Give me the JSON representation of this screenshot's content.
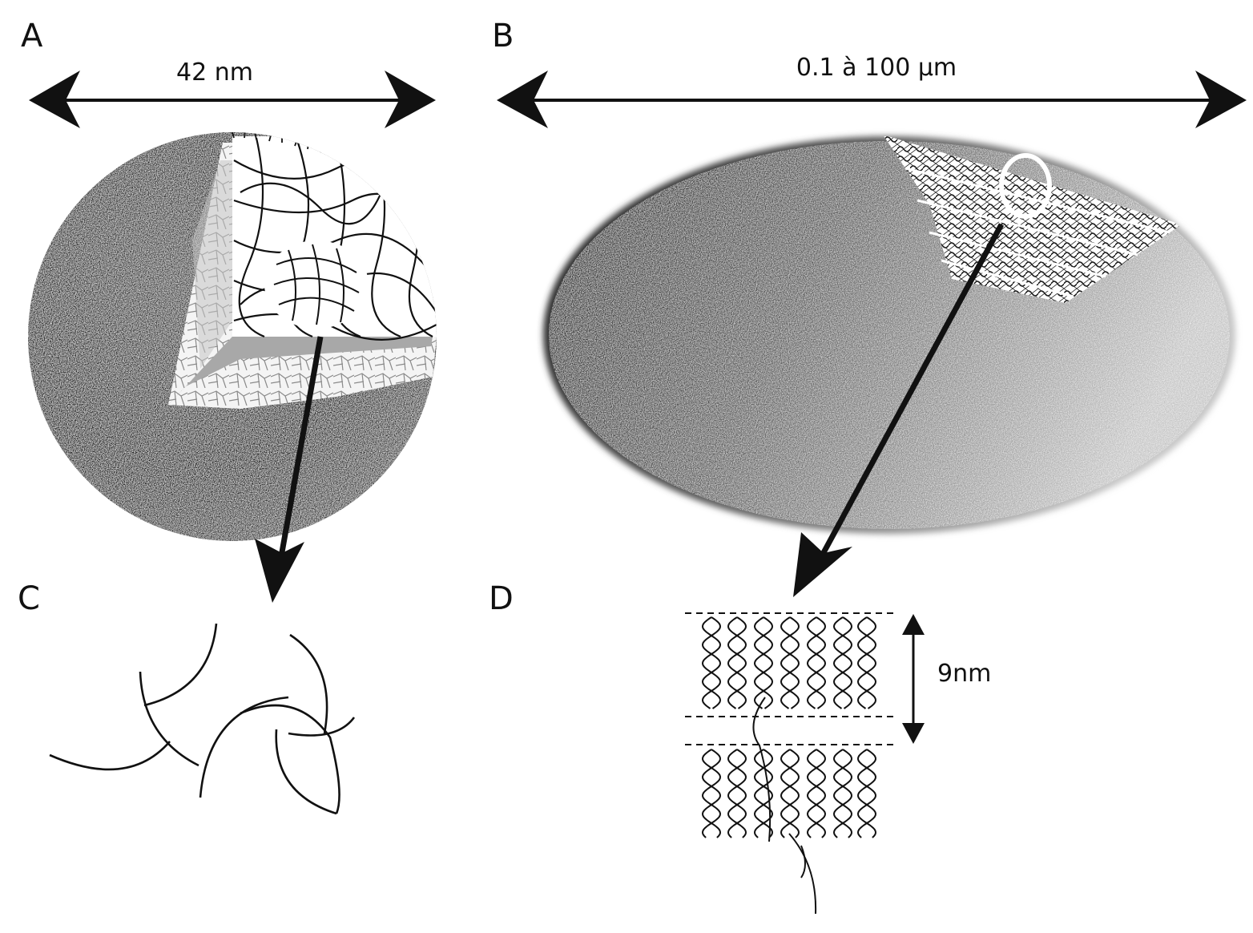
{
  "panels": {
    "a": {
      "letter": "A",
      "dimension": "42 nm"
    },
    "b": {
      "letter": "B",
      "dimension": "0.1 à 100 µm"
    },
    "c": {
      "letter": "C"
    },
    "d": {
      "letter": "D",
      "spacing": "9nm"
    }
  },
  "colors": {
    "ink": "#111111",
    "sphere_surface": "#1e1e1e",
    "ellipsoid_dark": "#2e2e2e",
    "ellipsoid_light": "#bdbdbd",
    "cutaway_gray": "#a8a8a8",
    "background": "#ffffff"
  },
  "icons": {
    "arrow": "double-headed-arrow",
    "pointer": "pointer-arrow"
  }
}
